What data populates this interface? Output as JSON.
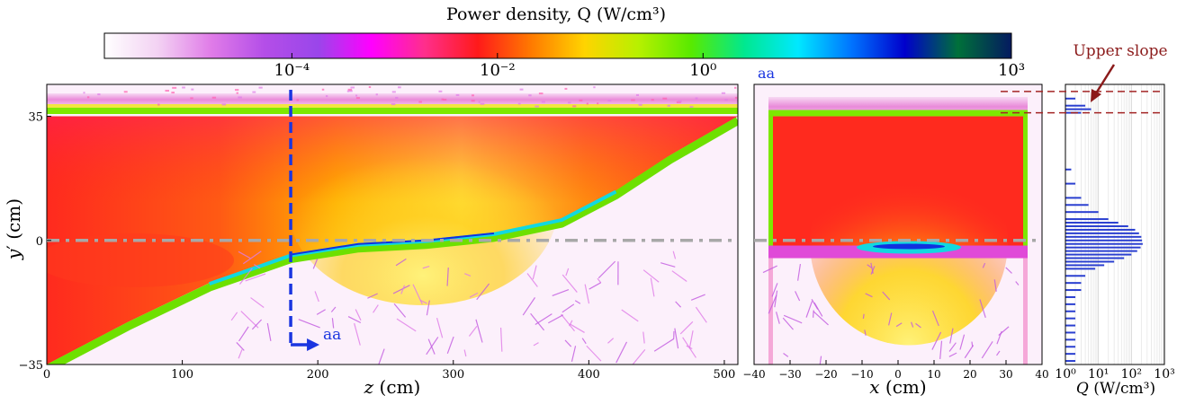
{
  "colorbar": {
    "title": "Power density, Q (W/cm³)",
    "ticks": [
      {
        "label": "10⁻⁴",
        "value": 0.0001
      },
      {
        "label": "10⁻²",
        "value": 0.01
      },
      {
        "label": "10⁰",
        "value": 1
      },
      {
        "label": "10³",
        "value": 1000
      }
    ],
    "range": [
      1.5e-06,
      1000
    ],
    "colors": [
      "#ffffff",
      "#f3d2f3",
      "#e07ce8",
      "#b44ee8",
      "#9a46ea",
      "#ff00ff",
      "#ff2e8c",
      "#ff1a1a",
      "#ff7a00",
      "#ffd400",
      "#b8f000",
      "#58ea00",
      "#00e890",
      "#00e8ff",
      "#0074ff",
      "#0000cc",
      "#00703a",
      "#041a60"
    ]
  },
  "chart_data": [
    {
      "type": "heatmap",
      "name": "side-view",
      "xlabel": "z (cm)",
      "ylabel": "y′ (cm)",
      "xlim": [
        0,
        510
      ],
      "ylim": [
        -35,
        44
      ],
      "x_ticks": [
        "0",
        "100",
        "200",
        "300",
        "400",
        "500"
      ],
      "x_tick_values": [
        0,
        100,
        200,
        300,
        400,
        500
      ],
      "y_ticks": [
        "−35",
        "0",
        "35"
      ],
      "y_tick_values": [
        -35,
        0,
        35
      ],
      "section_marker": {
        "z": 180,
        "label": "aa"
      },
      "reference_line_y": 0,
      "slope_profile": {
        "z": [
          0,
          60,
          120,
          180,
          230,
          280,
          330,
          380,
          420,
          460,
          510
        ],
        "y": [
          -35,
          -23,
          -12,
          -4,
          -1,
          0,
          2,
          6,
          14,
          24,
          35
        ]
      },
      "top_surface_y": 35
    },
    {
      "type": "heatmap",
      "name": "cross-section-aa",
      "title": "aa",
      "xlabel": "x (cm)",
      "xlim": [
        -40,
        40
      ],
      "ylim": [
        -35,
        44
      ],
      "x_ticks": [
        "−40",
        "−30",
        "−20",
        "−10",
        "0",
        "10",
        "20",
        "30",
        "40"
      ],
      "x_tick_values": [
        -40,
        -30,
        -20,
        -10,
        0,
        10,
        20,
        30,
        40
      ],
      "slab_x": [
        -36,
        36
      ],
      "slab_top_y": 35,
      "slab_bottom_y": -5
    },
    {
      "type": "bar",
      "orientation": "horizontal",
      "name": "Q-profile",
      "xlabel": "Q (W/cm³)",
      "xscale": "log",
      "xlim": [
        1,
        1000
      ],
      "x_ticks": [
        "10⁰",
        "10¹",
        "10²",
        "10³"
      ],
      "x_tick_values": [
        1,
        10,
        100,
        1000
      ],
      "annotation": "Upper slope",
      "upper_slope_band_y": [
        36,
        42
      ],
      "y": [
        40,
        38,
        37,
        36,
        20,
        16,
        12,
        10,
        8,
        6,
        5,
        4,
        3,
        2,
        1,
        0,
        -1,
        -2,
        -3,
        -4,
        -5,
        -6,
        -7,
        -8,
        -10,
        -12,
        -14,
        -16,
        -18,
        -20,
        -22,
        -24,
        -26,
        -28,
        -30,
        -32,
        -34
      ],
      "values": [
        2,
        4,
        6,
        3,
        1.5,
        2,
        3,
        5,
        10,
        20,
        40,
        80,
        130,
        170,
        200,
        210,
        220,
        190,
        150,
        100,
        60,
        30,
        15,
        8,
        4,
        3,
        3,
        2,
        2,
        2,
        2,
        2,
        2,
        2,
        2,
        2,
        2
      ]
    }
  ]
}
